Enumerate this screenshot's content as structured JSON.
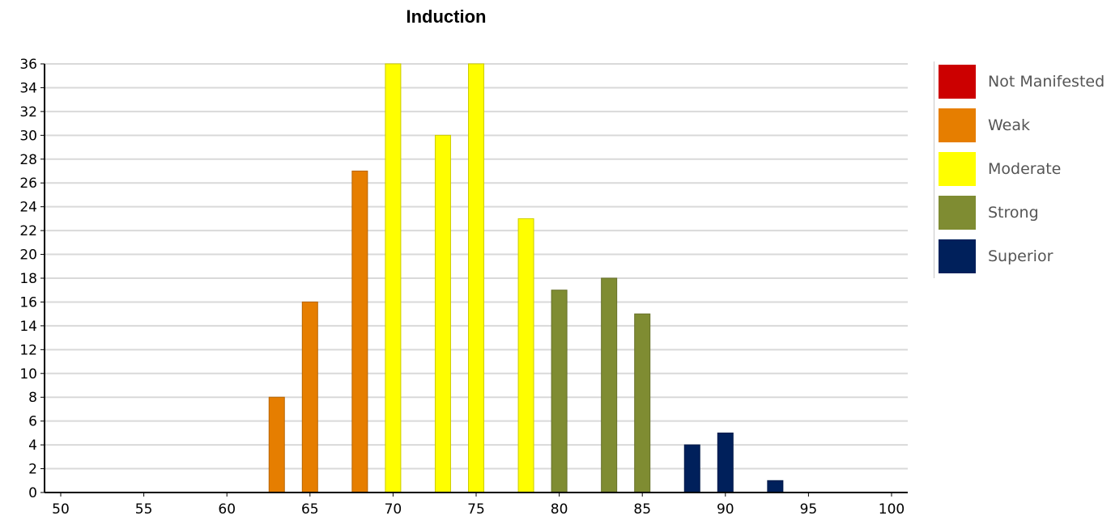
{
  "chart_data": {
    "type": "bar",
    "title": "Induction",
    "x_ticks": [
      50,
      55,
      60,
      65,
      70,
      75,
      80,
      85,
      90,
      95,
      100
    ],
    "y_ticks": [
      0,
      2,
      4,
      6,
      8,
      10,
      12,
      14,
      16,
      18,
      20,
      22,
      24,
      26,
      28,
      30,
      32,
      34,
      36
    ],
    "xlim": [
      50,
      100
    ],
    "ylim": [
      0,
      36
    ],
    "grid": "horizontal",
    "legend_position": "right",
    "series": [
      {
        "name": "Not Manifested",
        "color": "#cc0000",
        "x": [],
        "values": []
      },
      {
        "name": "Weak",
        "color": "#e67e00",
        "x": [
          63,
          65,
          68
        ],
        "values": [
          8,
          16,
          27
        ]
      },
      {
        "name": "Moderate",
        "color": "#ffff00",
        "x": [
          70,
          73,
          75,
          78
        ],
        "values": [
          36,
          30,
          36,
          23
        ]
      },
      {
        "name": "Strong",
        "color": "#7f8c32",
        "x": [
          80,
          83,
          85
        ],
        "values": [
          17,
          18,
          15
        ]
      },
      {
        "name": "Superior",
        "color": "#00205b",
        "x": [
          88,
          90,
          93
        ],
        "values": [
          4,
          5,
          1
        ]
      }
    ]
  }
}
